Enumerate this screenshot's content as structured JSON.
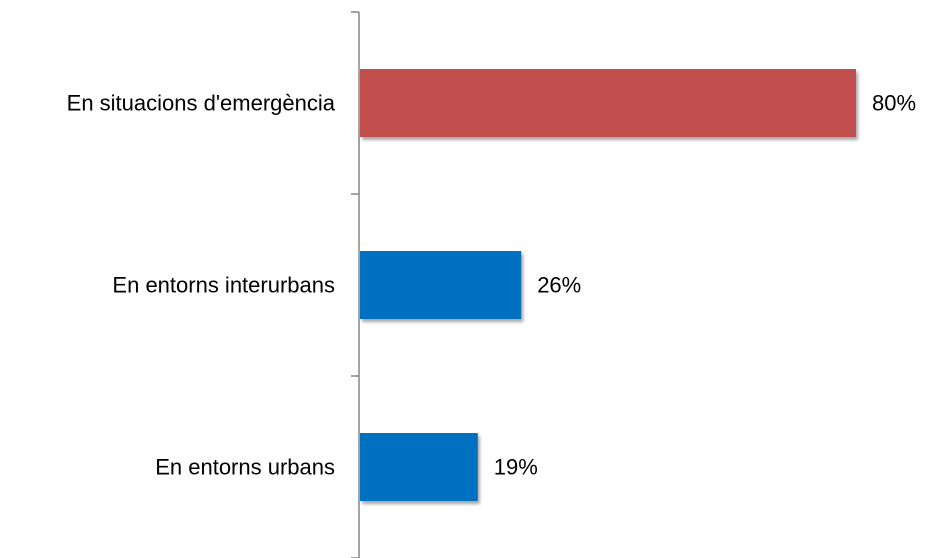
{
  "chart_data": {
    "type": "bar",
    "orientation": "horizontal",
    "categories": [
      "En situacions d'emergència",
      "En entorns interurbans",
      "En entorns urbans"
    ],
    "values": [
      80,
      26,
      19
    ],
    "value_labels": [
      "80%",
      "26%",
      "19%"
    ],
    "bar_colors": [
      "#c0504d",
      "#0070c0",
      "#0070c0"
    ],
    "xlim": [
      0,
      100
    ],
    "title": "",
    "xlabel": "",
    "ylabel": "",
    "grid": false,
    "legend": "none"
  }
}
